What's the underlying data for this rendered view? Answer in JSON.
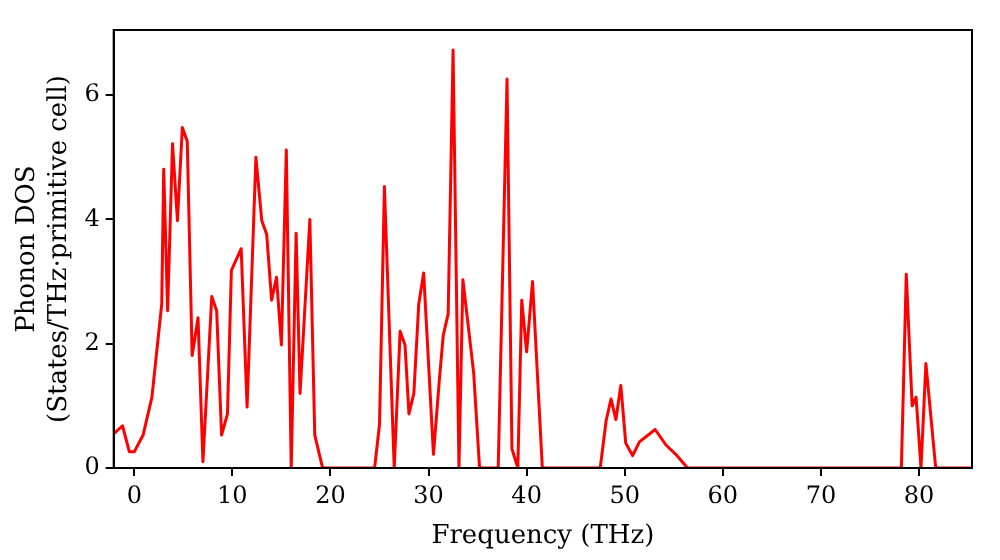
{
  "chart_data": {
    "type": "line",
    "xlabel": "Frequency (THz)",
    "ylabel": "Phonon DOS\n(States/THz·primitive cell)",
    "xlim": [
      -2.1,
      85.4
    ],
    "ylim": [
      0,
      7.05
    ],
    "xticks": [
      0,
      10,
      20,
      30,
      40,
      50,
      60,
      70,
      80
    ],
    "yticks": [
      0,
      2,
      4,
      6
    ],
    "grid": false,
    "legend": false,
    "marker": "none",
    "line_style": "solid",
    "series": [
      {
        "color": "#ff0000",
        "x": [
          -2.1,
          -1.2,
          -0.5,
          0,
          0.9,
          1.8,
          2.8,
          3.0,
          3.4,
          3.9,
          4.4,
          4.9,
          5.4,
          5.9,
          6.5,
          7.0,
          7.9,
          8.4,
          8.9,
          9.5,
          9.9,
          10.9,
          11.5,
          12.4,
          13.0,
          13.5,
          14.0,
          14.5,
          15.0,
          15.5,
          16.0,
          16.5,
          16.9,
          17.9,
          18.4,
          19.2,
          24.5,
          25.0,
          25.5,
          26.5,
          27.1,
          27.6,
          28.0,
          28.5,
          29.0,
          29.5,
          30.5,
          31.1,
          31.5,
          32.0,
          32.5,
          33.1,
          33.5,
          34.6,
          35.2,
          37.1,
          38.0,
          38.5,
          39.1,
          39.5,
          40.0,
          40.6,
          41.6,
          47.5,
          48.1,
          48.6,
          49.1,
          49.6,
          50.1,
          50.8,
          51.5,
          53.1,
          54.2,
          55.2,
          56.4,
          78.2,
          78.7,
          79.3,
          79.7,
          80.2,
          80.7,
          81.7,
          85.4
        ],
        "values": [
          0.55,
          0.68,
          0.26,
          0.26,
          0.53,
          1.14,
          2.64,
          4.81,
          2.53,
          5.22,
          3.98,
          5.48,
          5.26,
          1.81,
          2.42,
          0.1,
          2.76,
          2.53,
          0.53,
          0.87,
          3.18,
          3.53,
          0.98,
          5.0,
          3.98,
          3.76,
          2.7,
          3.07,
          1.98,
          5.12,
          0,
          3.78,
          1.2,
          4.0,
          0.53,
          0,
          0,
          0.7,
          4.53,
          0,
          2.2,
          1.98,
          0.87,
          1.2,
          2.64,
          3.14,
          0.22,
          1.42,
          2.14,
          2.48,
          6.73,
          0,
          3.03,
          1.53,
          0,
          0,
          6.26,
          0.31,
          0,
          2.7,
          1.87,
          3.0,
          0,
          0,
          0.76,
          1.11,
          0.78,
          1.33,
          0.4,
          0.2,
          0.42,
          0.62,
          0.37,
          0.22,
          0,
          0,
          3.12,
          1.0,
          1.14,
          0,
          1.68,
          0,
          0
        ]
      }
    ]
  }
}
